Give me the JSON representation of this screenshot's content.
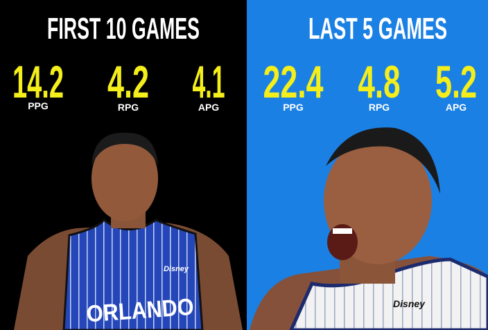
{
  "panels": [
    {
      "title": "FIRST 10 GAMES",
      "stats": [
        {
          "value": "14.2",
          "label": "PPG"
        },
        {
          "value": "4.2",
          "label": "RPG"
        },
        {
          "value": "4.1",
          "label": "APG"
        }
      ],
      "jersey_text": "ORLANDO",
      "sponsor": "Disney"
    },
    {
      "title": "LAST 5 GAMES",
      "stats": [
        {
          "value": "22.4",
          "label": "PPG"
        },
        {
          "value": "4.8",
          "label": "RPG"
        },
        {
          "value": "5.2",
          "label": "APG"
        }
      ],
      "sponsor": "Disney"
    }
  ]
}
